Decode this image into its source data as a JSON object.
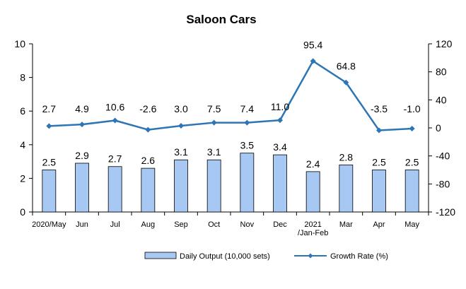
{
  "chart_data": {
    "type": "bar+line",
    "title": "Saloon Cars",
    "categories": [
      "2020/May",
      "Jun",
      "Jul",
      "Aug",
      "Sep",
      "Oct",
      "Nov",
      "Dec",
      "2021\n/Jan-Feb",
      "Mar",
      "Apr",
      "May"
    ],
    "series": [
      {
        "name": "Daily Output (10,000 sets)",
        "type": "bar",
        "axis": "left",
        "values": [
          2.5,
          2.9,
          2.7,
          2.6,
          3.1,
          3.1,
          3.5,
          3.4,
          2.4,
          2.8,
          2.5,
          2.5
        ],
        "labels": [
          "2.5",
          "2.9",
          "2.7",
          "2.6",
          "3.1",
          "3.1",
          "3.5",
          "3.4",
          "2.4",
          "2.8",
          "2.5",
          "2.5"
        ],
        "color": "#a7c8f2"
      },
      {
        "name": "Growth Rate (%)",
        "type": "line",
        "axis": "right",
        "values": [
          2.7,
          4.9,
          10.6,
          -2.6,
          3.0,
          7.5,
          7.4,
          11.0,
          95.4,
          64.8,
          -3.5,
          -1.0
        ],
        "labels": [
          "2.7",
          "4.9",
          "10.6",
          "-2.6",
          "3.0",
          "7.5",
          "7.4",
          "11.0",
          "95.4",
          "64.8",
          "-3.5",
          "-1.0"
        ],
        "color": "#2e75b6"
      }
    ],
    "y_left": {
      "min": 0,
      "max": 10,
      "ticks": [
        0,
        2,
        4,
        6,
        8,
        10
      ]
    },
    "y_right": {
      "min": -120,
      "max": 120,
      "ticks": [
        -120,
        -80,
        -40,
        0,
        40,
        80,
        120
      ]
    },
    "grid": false,
    "legend_position": "bottom"
  }
}
